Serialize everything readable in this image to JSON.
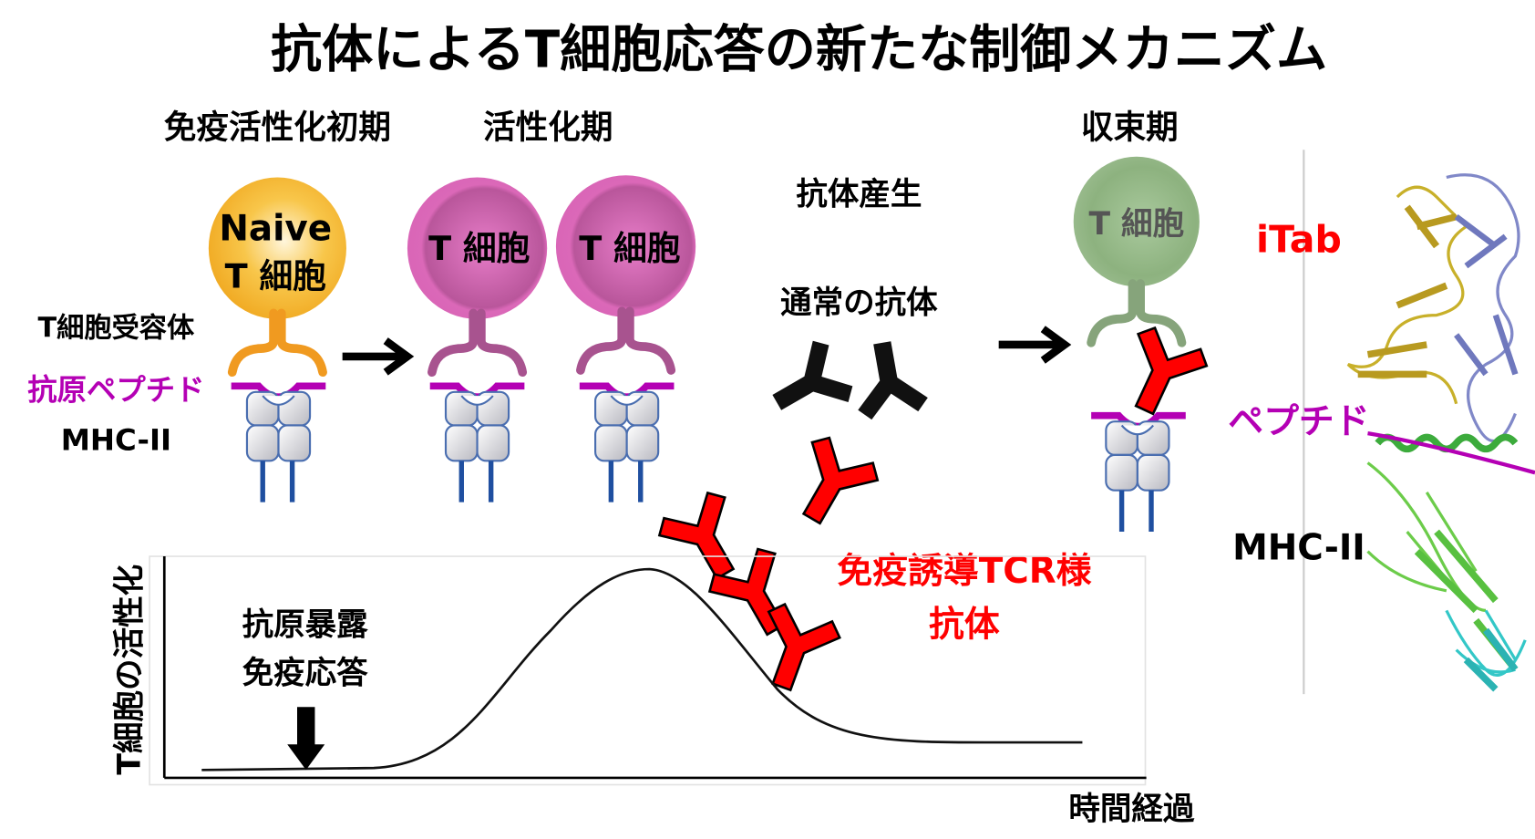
{
  "title": "抗体によるT細胞応答の新たな制御メカニズム",
  "phases": {
    "early": "免疫活性化初期",
    "active": "活性化期",
    "resolution": "収束期"
  },
  "left_labels": {
    "tcr": "T細胞受容体",
    "peptide": "抗原ペプチド",
    "mhc": "MHC-II"
  },
  "cells": {
    "naive_line1": "Naive",
    "naive_line2": "T 細胞",
    "active1": "T 細胞",
    "active2": "T 細胞",
    "resolved": "T 細胞"
  },
  "middle": {
    "antibody_production": "抗体産生",
    "normal_antibody": "通常の抗体",
    "tcr_like_line1": "免疫誘導TCR様",
    "tcr_like_line2": "抗体"
  },
  "structure": {
    "itab": "iTab",
    "peptide": "ペプチド",
    "mhc": "MHC-II"
  },
  "graph": {
    "ylabel": "T細胞の活性化",
    "xlabel": "時間経過",
    "event_line1": "抗原暴露",
    "event_line2": "免疫応答"
  },
  "colors": {
    "naive_cell": "#f5b731",
    "active_cell": "#d95fb5",
    "resolved_cell": "#95b88a",
    "peptide": "#b400b4",
    "tcr_like_antibody": "#ff0000",
    "mhc_leg": "#1f4fa0"
  }
}
